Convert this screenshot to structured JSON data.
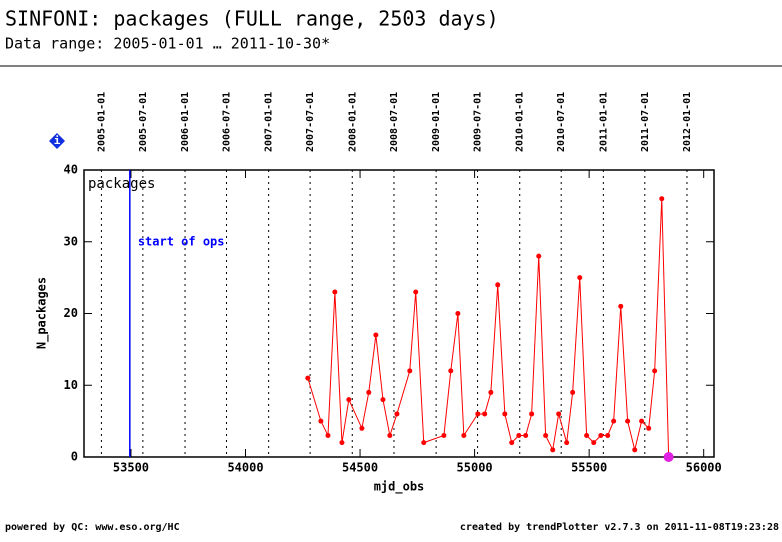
{
  "chart_data": {
    "type": "line",
    "title": "SINFONI: packages (FULL range, 2503 days)",
    "subtitle": "Data range: 2005-01-01 … 2011-10-30*",
    "x_label": "mjd_obs",
    "y_label": "N_packages",
    "panel_label": "packages",
    "info_icon": "i",
    "footer_left": "powered by QC: www.eso.org/HC",
    "footer_right": "created by trendPlotter v2.7.3 on 2011-11-08T19:23:28",
    "xlim": [
      53295,
      56045
    ],
    "ylim": [
      0,
      40
    ],
    "xticks": [
      53500,
      54000,
      54500,
      55000,
      55500,
      56000
    ],
    "yticks": [
      0,
      10,
      20,
      30,
      40
    ],
    "x2ticks": [
      {
        "value": 53371,
        "label": "2005-01-01"
      },
      {
        "value": 53552,
        "label": "2005-07-01"
      },
      {
        "value": 53736,
        "label": "2006-01-01"
      },
      {
        "value": 53917,
        "label": "2006-07-01"
      },
      {
        "value": 54101,
        "label": "2007-01-01"
      },
      {
        "value": 54282,
        "label": "2007-07-01"
      },
      {
        "value": 54466,
        "label": "2008-01-01"
      },
      {
        "value": 54648,
        "label": "2008-07-01"
      },
      {
        "value": 54832,
        "label": "2009-01-01"
      },
      {
        "value": 55013,
        "label": "2009-07-01"
      },
      {
        "value": 55197,
        "label": "2010-01-01"
      },
      {
        "value": 55378,
        "label": "2010-07-01"
      },
      {
        "value": 55562,
        "label": "2011-01-01"
      },
      {
        "value": 55743,
        "label": "2011-07-01"
      },
      {
        "value": 55927,
        "label": "2012-01-01"
      }
    ],
    "vlines": [
      {
        "x": 53495,
        "label": "start of ops",
        "color": "#0000ff"
      }
    ],
    "last_point_color": "#e020e0",
    "series": [
      {
        "color": "#ff0000",
        "x": [
          54272,
          54329,
          54360,
          54390,
          54421,
          54451,
          54508,
          54538,
          54569,
          54600,
          54630,
          54661,
          54717,
          54743,
          54778,
          54866,
          54896,
          54927,
          54953,
          55014,
          55044,
          55071,
          55101,
          55132,
          55162,
          55193,
          55223,
          55249,
          55280,
          55310,
          55341,
          55367,
          55402,
          55428,
          55459,
          55489,
          55520,
          55551,
          55581,
          55607,
          55638,
          55668,
          55699,
          55729,
          55760,
          55786,
          55817,
          55847
        ],
        "values": [
          11,
          5,
          3,
          23,
          2,
          8,
          4,
          9,
          17,
          8,
          3,
          6,
          12,
          23,
          2,
          3,
          12,
          20,
          3,
          6,
          6,
          9,
          24,
          6,
          2,
          3,
          3,
          6,
          28,
          3,
          1,
          6,
          2,
          9,
          25,
          3,
          2,
          3,
          3,
          5,
          21,
          5,
          1,
          5,
          4,
          12,
          36,
          0
        ]
      }
    ]
  }
}
